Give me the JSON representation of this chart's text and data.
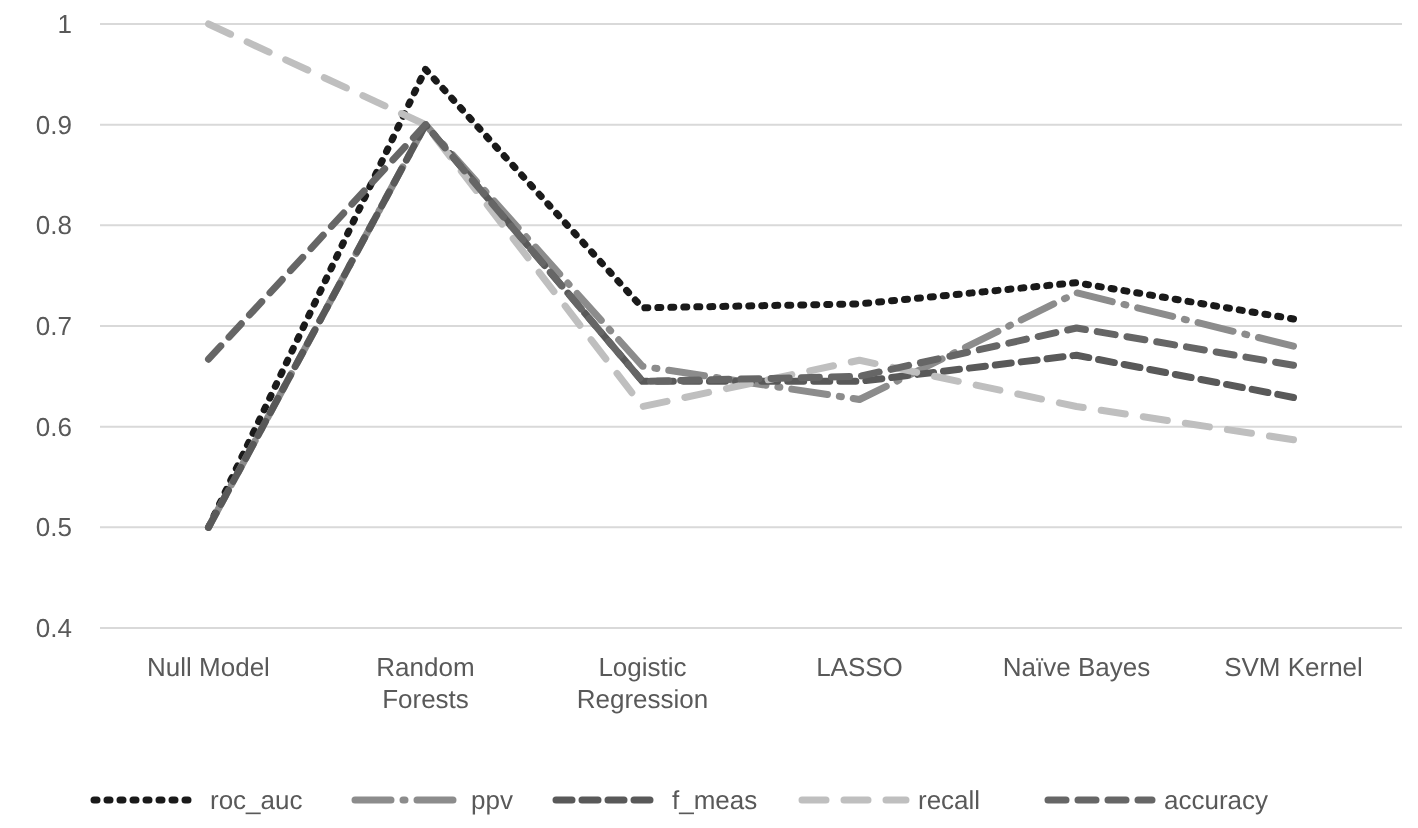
{
  "chart_data": {
    "type": "line",
    "categories": [
      "Null Model",
      "Random Forests",
      "Logistic Regression",
      "LASSO",
      "Naïve Bayes",
      "SVM Kernel"
    ],
    "series": [
      {
        "name": "roc_auc",
        "color": "#1a1a1a",
        "line_style": "dotted",
        "values": [
          0.5,
          0.955,
          0.718,
          0.722,
          0.743,
          0.707
        ]
      },
      {
        "name": "ppv",
        "color": "#8c8c8c",
        "line_style": "dashed",
        "values": [
          0.5,
          0.9,
          0.66,
          0.627,
          0.733,
          0.68
        ]
      },
      {
        "name": "f_meas",
        "color": "#595959",
        "line_style": "dashed",
        "values": [
          0.5,
          0.9,
          0.645,
          0.645,
          0.671,
          0.629
        ]
      },
      {
        "name": "recall",
        "color": "#bfbfbf",
        "line_style": "dashed",
        "values": [
          1,
          0.9,
          0.62,
          0.666,
          0.62,
          0.587
        ]
      },
      {
        "name": "accuracy",
        "color": "#666666",
        "line_style": "dashed",
        "values": [
          0.667,
          0.9,
          0.645,
          0.65,
          0.698,
          0.661
        ]
      }
    ],
    "ylim": [
      0.4,
      1
    ],
    "yticks": [
      0.4,
      0.5,
      0.6,
      0.7,
      0.8,
      0.9,
      1
    ],
    "grid": "y",
    "legend": "bottom"
  }
}
